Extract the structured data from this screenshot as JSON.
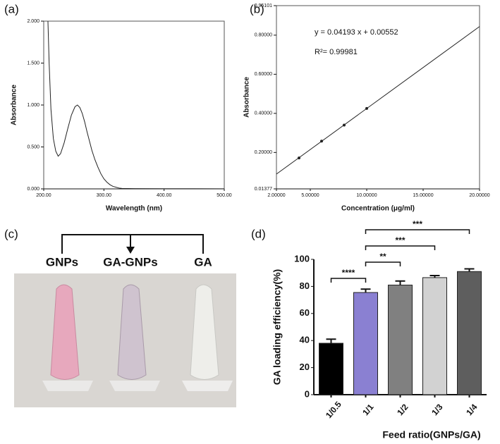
{
  "chart_data": [
    {
      "type": "line",
      "panel_label": "(a)",
      "xlabel": "Wavelength (nm)",
      "ylabel": "Absorbance",
      "x": [
        207,
        209,
        212,
        216,
        220,
        224,
        228,
        234,
        240,
        246,
        252,
        256,
        260,
        264,
        268,
        272,
        276,
        280,
        285,
        290,
        295,
        300,
        305,
        310,
        315,
        320,
        325,
        330,
        350,
        400,
        450,
        500
      ],
      "series": [
        {
          "color": "#222222",
          "values": [
            2.0,
            1.5,
            0.95,
            0.6,
            0.45,
            0.39,
            0.42,
            0.55,
            0.72,
            0.88,
            0.98,
            1.0,
            0.97,
            0.9,
            0.8,
            0.68,
            0.57,
            0.46,
            0.35,
            0.26,
            0.18,
            0.12,
            0.08,
            0.05,
            0.03,
            0.02,
            0.01,
            0.005,
            0.003,
            0.002,
            0.002,
            0.001
          ]
        }
      ],
      "xlim": [
        200,
        500
      ],
      "xticks": [
        {
          "value": 200,
          "label": "200.00"
        },
        {
          "value": 300,
          "label": "300.00"
        },
        {
          "value": 400,
          "label": "400.00"
        },
        {
          "value": 500,
          "label": "500.00"
        }
      ],
      "ylim": [
        0,
        2
      ],
      "yticks": [
        {
          "value": 0,
          "label": "0.000"
        },
        {
          "value": 0.5,
          "label": "0.500"
        },
        {
          "value": 1,
          "label": "1.000"
        },
        {
          "value": 1.5,
          "label": "1.500"
        },
        {
          "value": 2,
          "label": "2.000"
        }
      ]
    },
    {
      "type": "scatter",
      "panel_label": "(b)",
      "xlabel": "Concentration (μg/ml)",
      "ylabel": "Absorbance",
      "x": [
        4,
        6,
        8,
        10
      ],
      "values": [
        0.172,
        0.258,
        0.34,
        0.425
      ],
      "color": "#222222",
      "fit": {
        "x": [
          2,
          20
        ],
        "values": [
          0.0894,
          0.8441
        ]
      },
      "annotations": [
        "y = 0.04193 x + 0.00552",
        "R²= 0.99981"
      ],
      "xlim": [
        2,
        20
      ],
      "xticks": [
        {
          "value": 2,
          "label": "2.00000"
        },
        {
          "value": 5,
          "label": "5.00000"
        },
        {
          "value": 10,
          "label": "10.00000"
        },
        {
          "value": 15,
          "label": "15.00000"
        },
        {
          "value": 20,
          "label": "20.00000"
        }
      ],
      "ylim": [
        0.01377,
        0.95101
      ],
      "yticks": [
        0.01377,
        {
          "value": 0.2,
          "label": "0.20000"
        },
        {
          "value": 0.4,
          "label": "0.40000"
        },
        {
          "value": 0.6,
          "label": "0.60000"
        },
        {
          "value": 0.8,
          "label": "0.80000"
        },
        0.95101
      ]
    },
    {
      "type": "bar",
      "panel_label": "(d)",
      "xlabel": "Feed ratio(GNPs/GA)",
      "ylabel": "GA loading efficiency(%)",
      "categories": [
        "1/0.5",
        "1/1",
        "1/2",
        "1/3",
        "1/4"
      ],
      "values": [
        38,
        75.5,
        81,
        86.5,
        91
      ],
      "errors": [
        3,
        2.5,
        3,
        1.5,
        2
      ],
      "colors": [
        "#000000",
        "#8a80d2",
        "#808080",
        "#d2d2d2",
        "#5e5e5e"
      ],
      "ylim": [
        0,
        100
      ],
      "yticks": [
        0,
        20,
        40,
        60,
        80,
        100
      ],
      "significance": [
        {
          "from": 0,
          "to": 1,
          "label": "****"
        },
        {
          "from": 1,
          "to": 2,
          "label": "**"
        },
        {
          "from": 1,
          "to": 3,
          "label": "***"
        },
        {
          "from": 1,
          "to": 4,
          "label": "***"
        }
      ]
    }
  ],
  "photo": {
    "panel_label": "(c)",
    "labels": [
      "GNPs",
      "GA-GNPs",
      "GA"
    ]
  }
}
